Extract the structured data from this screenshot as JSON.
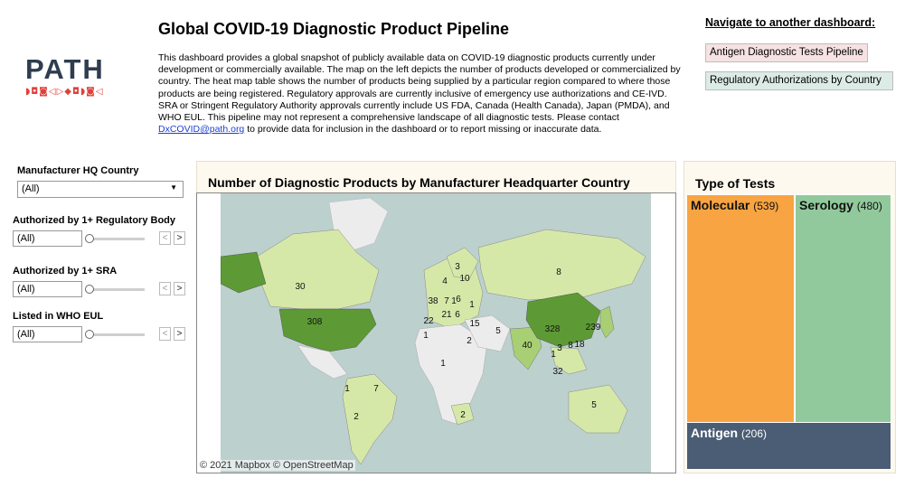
{
  "logo": {
    "text": "PATH",
    "glyphs": "◗◘◙◁▷◆◘◗◙◁"
  },
  "header": {
    "title": "Global COVID-19 Diagnostic Product Pipeline",
    "desc_1": "This dashboard provides a global snapshot of publicly available data on COVID-19 diagnostic products currently under development or commercially available. The map on the left depicts the number of products developed or commercialized by country. The heat map table shows the number of products being supplied by a particular region compared to where those products are being registered. Regulatory approvals are currently inclusive of emergency use authorizations and CE-IVD. SRA or Stringent Regulatory Authority approvals currently include US FDA, Canada (Health Canada), Japan (PMDA), and WHO EUL. This pipeline may not represent a comprehensive landscape of all diagnostic tests. Please contact ",
    "email": "DxCOVID@path.org",
    "desc_2": " to provide data for inclusion in the dashboard or to report missing or inaccurate data."
  },
  "nav": {
    "title": "Navigate to another dashboard:",
    "antigen": "Antigen Diagnostic Tests Pipeline",
    "regulatory": "Regulatory Authorizations by Country"
  },
  "filters": {
    "hq_label": "Manufacturer HQ Country",
    "hq_value": "(All)",
    "reg_label": "Authorized by 1+ Regulatory Body",
    "reg_value": "(All)",
    "sra_label": "Authorized by 1+ SRA",
    "sra_value": "(All)",
    "who_label": "Listed in WHO EUL",
    "who_value": "(All)",
    "prev": "<",
    "next": ">"
  },
  "map": {
    "title": "Number of Diagnostic Products by Manufacturer Headquarter Country",
    "credit": "© 2021 Mapbox  © OpenStreetMap",
    "colors": {
      "water": "#bcd0ce",
      "land": "#ececec",
      "low": "#d6e8a8",
      "mid": "#a8cf74",
      "high": "#5d9a35"
    },
    "labels": [
      "30",
      "308",
      "8",
      "3",
      "4",
      "10",
      "38",
      "7",
      "1",
      "6",
      "21",
      "6",
      "1",
      "22",
      "15",
      "5",
      "1",
      "2",
      "328",
      "239",
      "40",
      "3",
      "8",
      "18",
      "1",
      "32",
      "1",
      "1",
      "7",
      "2",
      "2",
      "5"
    ]
  },
  "types": {
    "title": "Type of Tests",
    "molecular_label": "Molecular",
    "molecular_count": "(539)",
    "serology_label": "Serology",
    "serology_count": "(480)",
    "antigen_label": "Antigen",
    "antigen_count": "(206)"
  },
  "chart_data": {
    "type": "table",
    "title": "Type of Tests",
    "categories": [
      "Molecular",
      "Serology",
      "Antigen"
    ],
    "values": [
      539,
      480,
      206
    ]
  }
}
